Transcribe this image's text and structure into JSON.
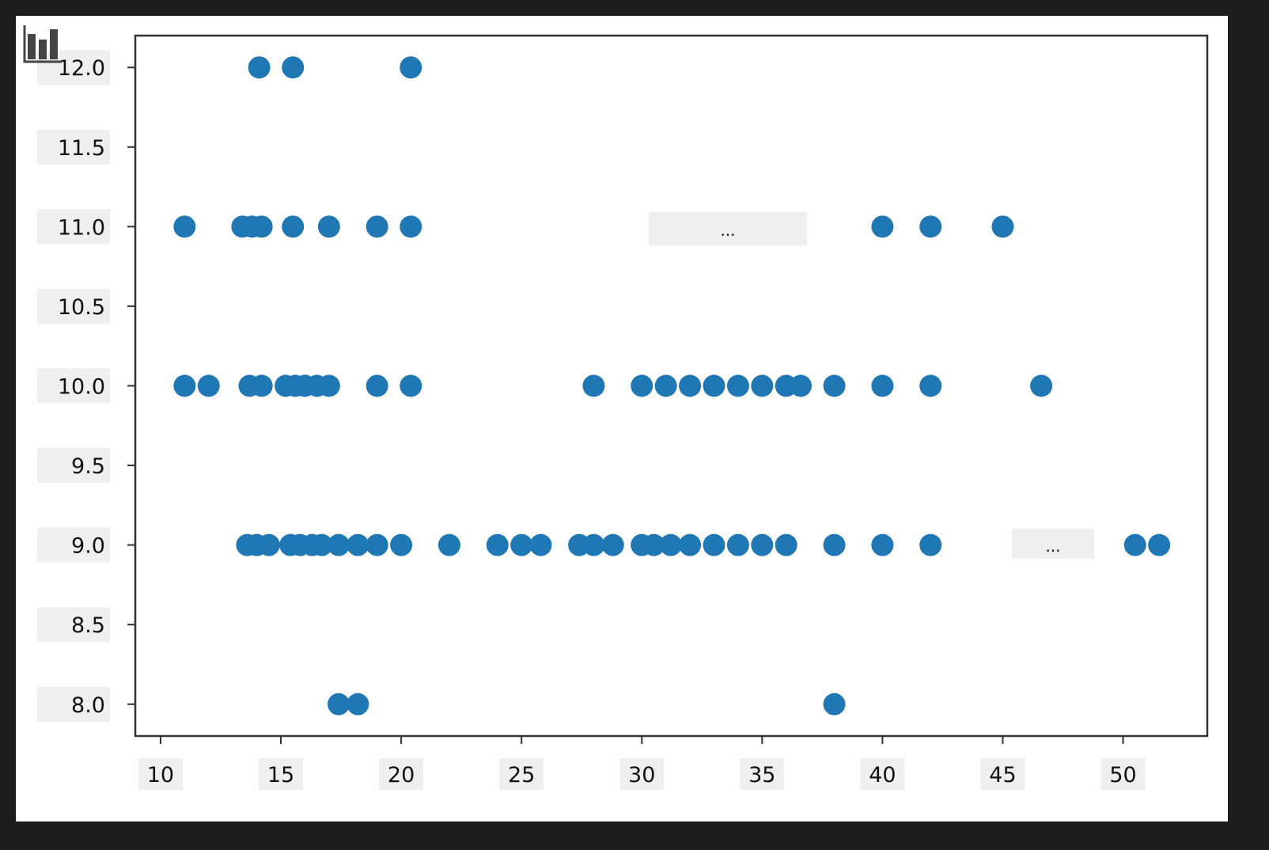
{
  "chart_data": {
    "type": "scatter",
    "title": "",
    "xlabel": "",
    "ylabel": "",
    "xlim": [
      8.95,
      53.5
    ],
    "ylim": [
      7.8,
      12.2
    ],
    "grid": false,
    "marker_color": "#1f77b4",
    "x_ticks": [
      "10",
      "15",
      "20",
      "25",
      "30",
      "35",
      "40",
      "45",
      "50"
    ],
    "y_ticks": [
      "8.0",
      "8.5",
      "9.0",
      "9.5",
      "10.0",
      "10.5",
      "11.0",
      "11.5",
      "12.0"
    ],
    "points": [
      [
        14.1,
        12
      ],
      [
        15.5,
        12
      ],
      [
        20.4,
        12
      ],
      [
        11,
        11
      ],
      [
        13.4,
        11
      ],
      [
        13.8,
        11
      ],
      [
        14.2,
        11
      ],
      [
        15.5,
        11
      ],
      [
        17,
        11
      ],
      [
        19,
        11
      ],
      [
        20.4,
        11
      ],
      [
        40,
        11
      ],
      [
        42,
        11
      ],
      [
        45,
        11
      ],
      [
        11,
        10
      ],
      [
        12,
        10
      ],
      [
        13.7,
        10
      ],
      [
        14.2,
        10
      ],
      [
        15.2,
        10
      ],
      [
        15.6,
        10
      ],
      [
        16,
        10
      ],
      [
        16.5,
        10
      ],
      [
        17,
        10
      ],
      [
        19,
        10
      ],
      [
        20.4,
        10
      ],
      [
        28,
        10
      ],
      [
        30,
        10
      ],
      [
        31,
        10
      ],
      [
        32,
        10
      ],
      [
        33,
        10
      ],
      [
        34,
        10
      ],
      [
        35,
        10
      ],
      [
        36,
        10
      ],
      [
        36.6,
        10
      ],
      [
        38,
        10
      ],
      [
        40,
        10
      ],
      [
        42,
        10
      ],
      [
        46.6,
        10
      ],
      [
        13.6,
        9
      ],
      [
        14,
        9
      ],
      [
        14.5,
        9
      ],
      [
        15.4,
        9
      ],
      [
        15.8,
        9
      ],
      [
        16.3,
        9
      ],
      [
        16.7,
        9
      ],
      [
        17.4,
        9
      ],
      [
        18.2,
        9
      ],
      [
        19,
        9
      ],
      [
        20,
        9
      ],
      [
        22,
        9
      ],
      [
        24,
        9
      ],
      [
        25,
        9
      ],
      [
        25.8,
        9
      ],
      [
        27.4,
        9
      ],
      [
        28,
        9
      ],
      [
        28.8,
        9
      ],
      [
        30,
        9
      ],
      [
        30.5,
        9
      ],
      [
        31.2,
        9
      ],
      [
        32,
        9
      ],
      [
        33,
        9
      ],
      [
        34,
        9
      ],
      [
        35,
        9
      ],
      [
        36,
        9
      ],
      [
        38,
        9
      ],
      [
        40,
        9
      ],
      [
        42,
        9
      ],
      [
        50.5,
        9
      ],
      [
        51.5,
        9
      ],
      [
        17.4,
        8
      ],
      [
        18.2,
        8
      ],
      [
        38,
        8
      ]
    ]
  },
  "overlays": [
    "...",
    "..."
  ],
  "toolbar": {
    "icon": "bar-chart-icon"
  }
}
